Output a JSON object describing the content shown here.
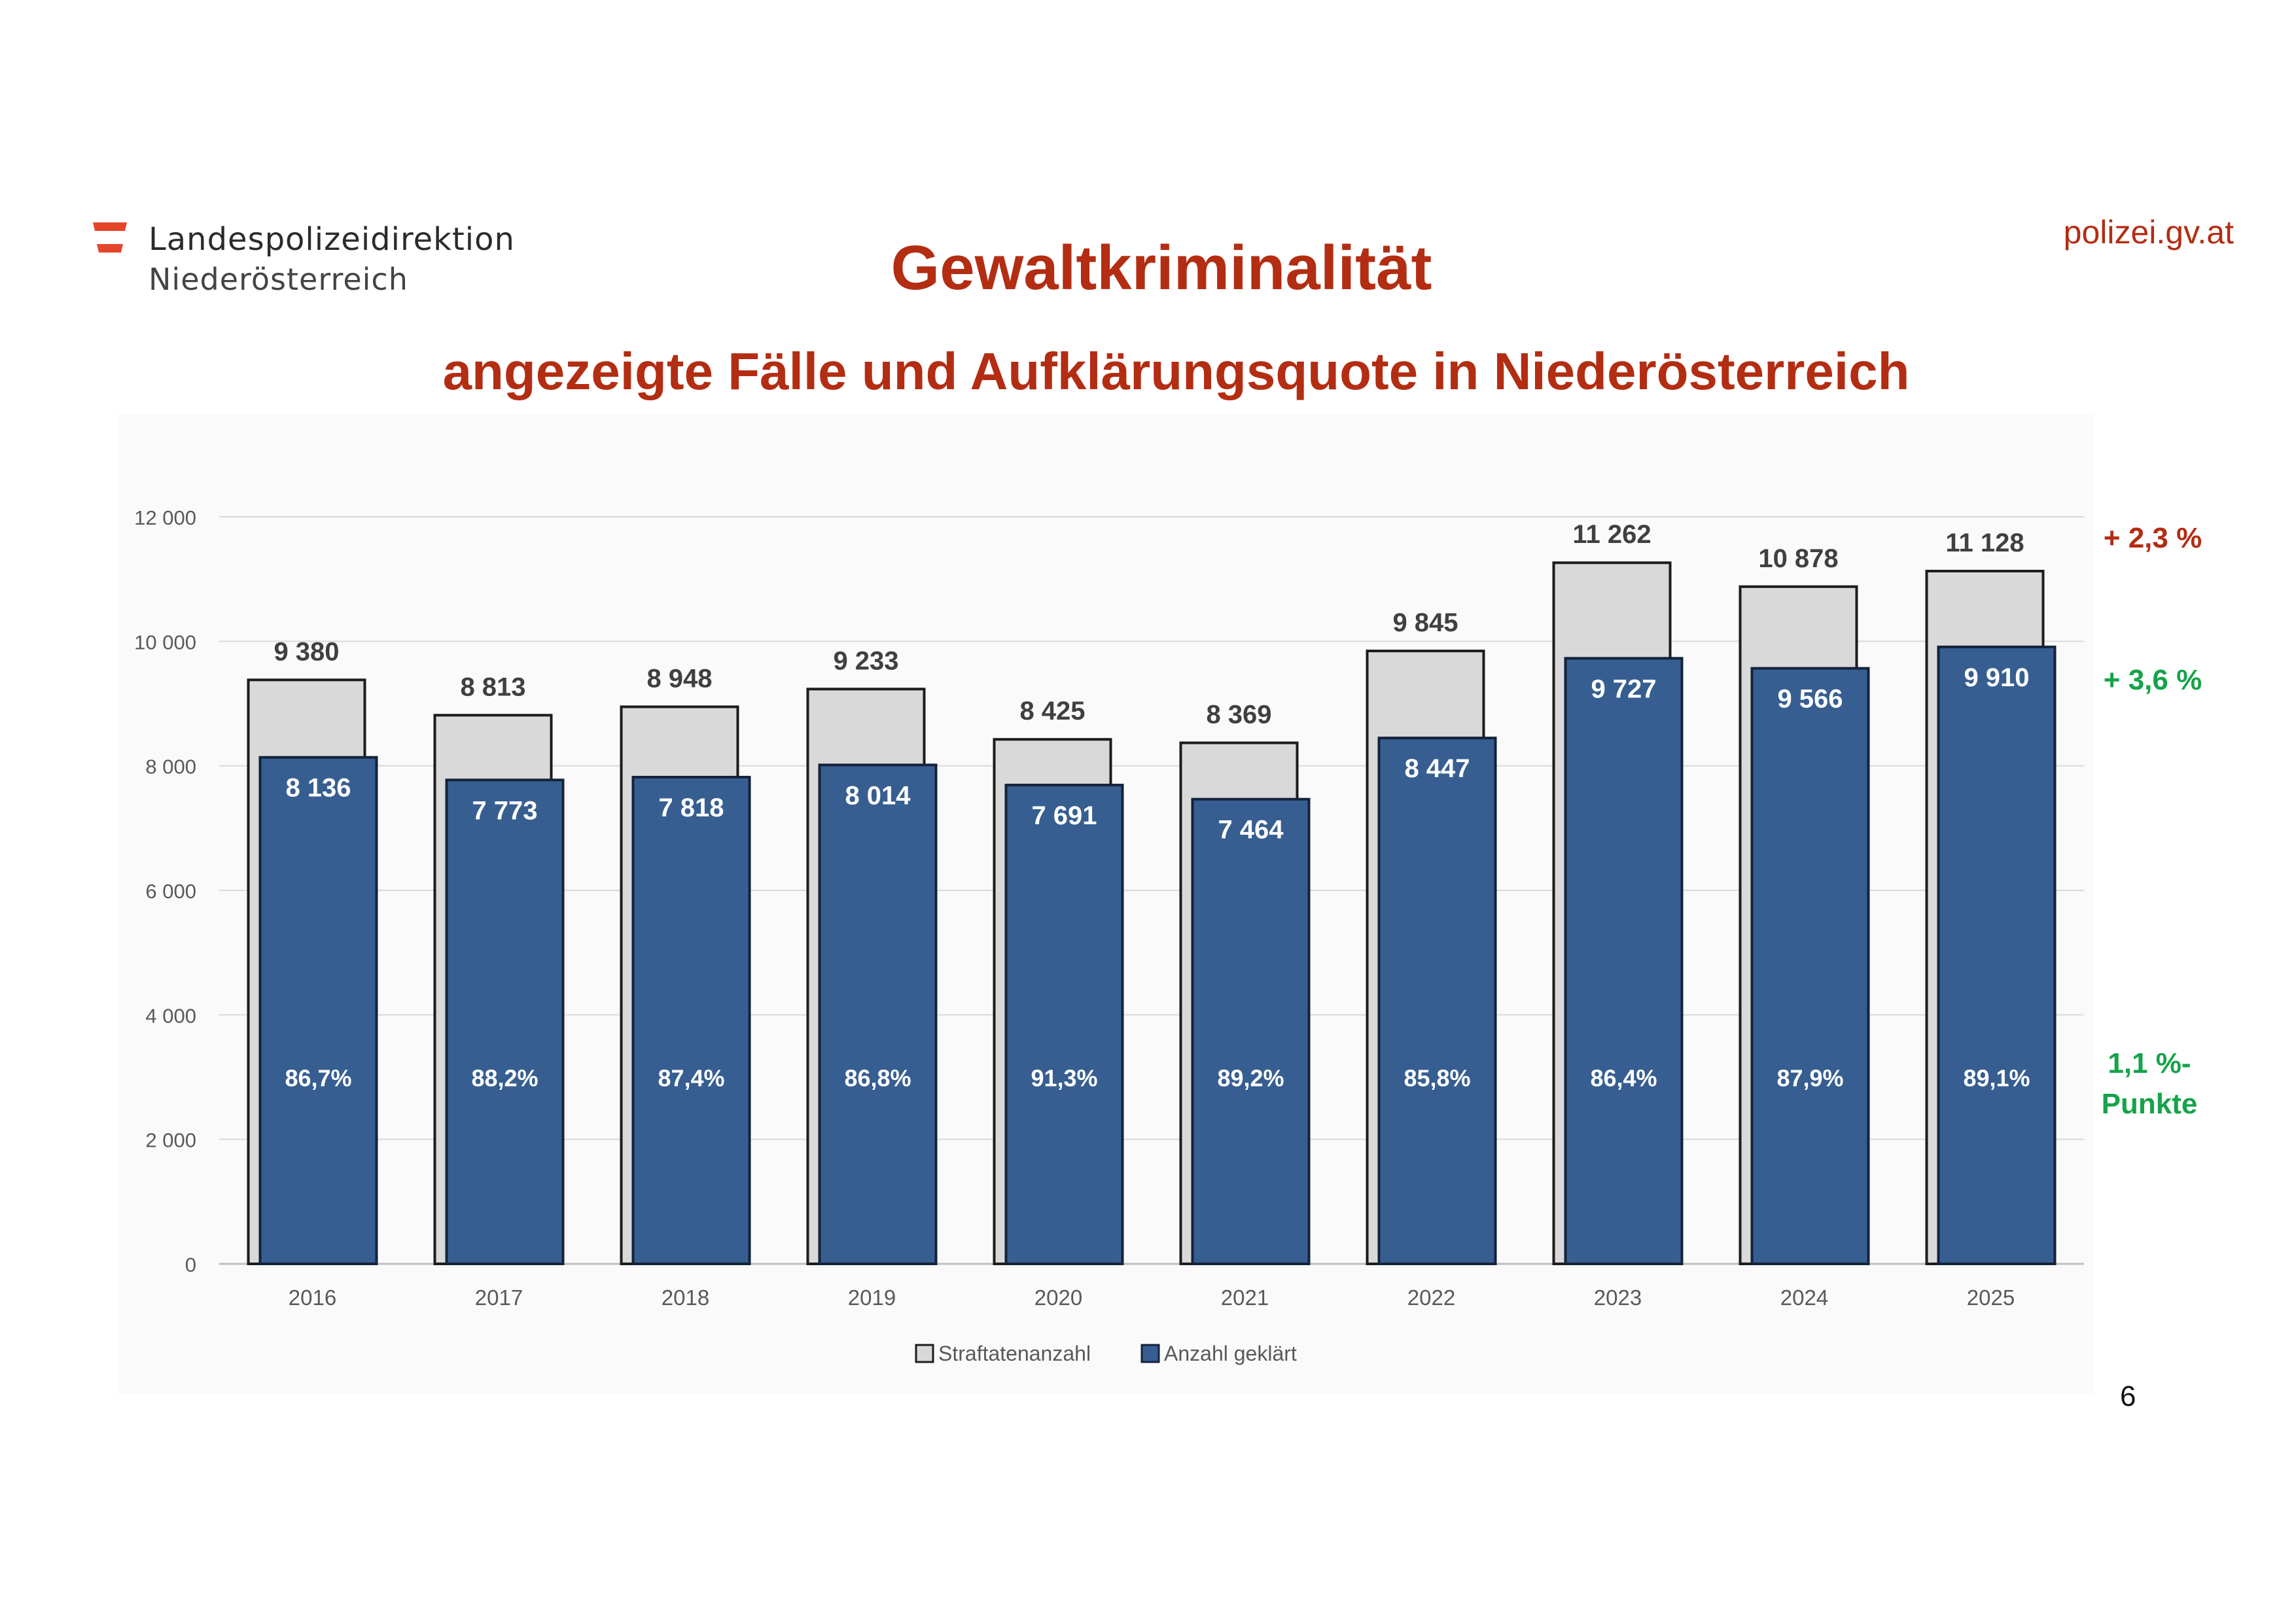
{
  "header": {
    "logo_line1": "Landespolizeidirektion",
    "logo_line2": "Niederösterreich",
    "site_url": "polizei.gv.at"
  },
  "colors": {
    "brand_red": "#b32d13",
    "positive_green": "#16a34a",
    "reported_bar": "#d9d9d9",
    "solved_bar": "#375e91",
    "flag_red": "#e4452a"
  },
  "chart_data": {
    "type": "bar",
    "title": "Gewaltkriminalität",
    "subtitle": "angezeigte Fälle und Aufklärungsquote in Niederösterreich",
    "categories": [
      "2016",
      "2017",
      "2018",
      "2019",
      "2020",
      "2021",
      "2022",
      "2023",
      "2024",
      "2025"
    ],
    "series": [
      {
        "name": "Straftatenanzahl",
        "values": [
          9380,
          8813,
          8948,
          9233,
          8425,
          8369,
          9845,
          11262,
          10878,
          11128
        ],
        "labels": [
          "9 380",
          "8 813",
          "8 948",
          "9 233",
          "8 425",
          "8 369",
          "9 845",
          "11 262",
          "10 878",
          "11 128"
        ]
      },
      {
        "name": "Anzahl geklärt",
        "values": [
          8136,
          7773,
          7818,
          8014,
          7691,
          7464,
          8447,
          9727,
          9566,
          9910
        ],
        "labels": [
          "8 136",
          "7 773",
          "7 818",
          "8 014",
          "7 691",
          "7 464",
          "8 447",
          "9 727",
          "9 566",
          "9 910"
        ]
      }
    ],
    "clearance_rates": [
      "86,7%",
      "88,2%",
      "87,4%",
      "86,8%",
      "91,3%",
      "89,2%",
      "85,8%",
      "86,4%",
      "87,9%",
      "89,1%"
    ],
    "rate_label_value": 3000,
    "ylim": [
      0,
      12000
    ],
    "yticks": [
      0,
      2000,
      4000,
      6000,
      8000,
      10000,
      12000
    ],
    "ytick_labels": [
      "0",
      "2 000",
      "4 000",
      "6 000",
      "8 000",
      "10 000",
      "12 000"
    ],
    "xlabel": "",
    "ylabel": "",
    "grid": true,
    "legend": "bottom-center"
  },
  "annotations": {
    "cases_change": "+ 2,3 %",
    "solved_change": "+ 3,6 %",
    "rate_change_line1": "1,1 %-",
    "rate_change_line2": "Punkte"
  },
  "page_number": "6"
}
